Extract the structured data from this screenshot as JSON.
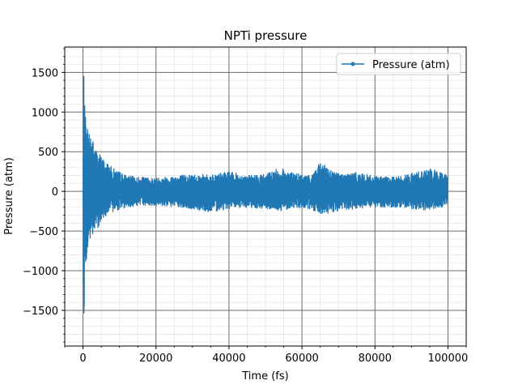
{
  "chart_data": {
    "type": "line",
    "title": "NPTi pressure",
    "xlabel": "Time (fs)",
    "ylabel": "Pressure (atm)",
    "xlim": [
      -5000,
      105000
    ],
    "ylim": [
      -1950,
      1820
    ],
    "xticks": [
      0,
      20000,
      40000,
      60000,
      80000,
      100000
    ],
    "xtick_labels": [
      "0",
      "20000",
      "40000",
      "60000",
      "80000",
      "100000"
    ],
    "yticks": [
      -1500,
      -1000,
      -500,
      0,
      500,
      1000,
      1500
    ],
    "ytick_labels": [
      "−1500",
      "−1000",
      "−500",
      "0",
      "500",
      "1000",
      "1500"
    ],
    "grid": true,
    "minor_grid": true,
    "legend_position": "top-right",
    "series": [
      {
        "name": "Pressure (atm)",
        "color": "#1f77b4",
        "marker": "dot",
        "envelope": {
          "x": [
            0,
            200,
            500,
            1000,
            1500,
            2000,
            3000,
            4000,
            5000,
            6000,
            8000,
            10000,
            12000,
            15000,
            20000,
            25000,
            30000,
            35000,
            40000,
            45000,
            50000,
            54000,
            58000,
            62000,
            65000,
            70000,
            75000,
            80000,
            85000,
            90000,
            95000,
            100000
          ],
          "upper": [
            0,
            1650,
            1000,
            950,
            750,
            830,
            600,
            520,
            450,
            400,
            300,
            250,
            200,
            180,
            170,
            200,
            220,
            210,
            250,
            200,
            220,
            300,
            230,
            200,
            360,
            230,
            240,
            190,
            180,
            230,
            290,
            220
          ],
          "lower": [
            0,
            -1780,
            -1100,
            -900,
            -700,
            -650,
            -560,
            -470,
            -380,
            -320,
            -260,
            -230,
            -200,
            -180,
            -180,
            -200,
            -230,
            -260,
            -220,
            -200,
            -220,
            -250,
            -200,
            -230,
            -300,
            -250,
            -230,
            -200,
            -200,
            -220,
            -240,
            -180
          ]
        }
      }
    ]
  }
}
